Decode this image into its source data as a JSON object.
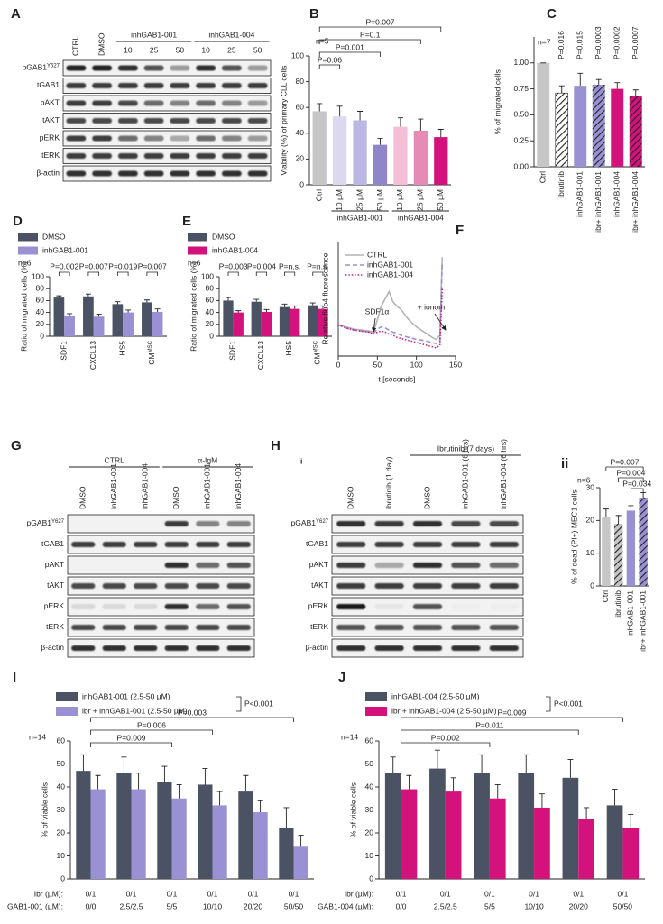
{
  "chart_data": [
    {
      "type": "bar",
      "panel": "B",
      "ylabel": "Viability (%) of primary CLL cells",
      "note": "n=5",
      "categories": [
        "Ctrl",
        "10 µM",
        "25 µM",
        "50 µM",
        "10 µM",
        "25 µM",
        "50 µM"
      ],
      "groups": [
        "inhGAB1-001",
        "inhGAB1-004"
      ],
      "series": [
        {
          "values": [
            57,
            53,
            50,
            31,
            45,
            42,
            37
          ],
          "errors": [
            6,
            8,
            7,
            5,
            7,
            9,
            6
          ],
          "colors": [
            "#c6c6c6",
            "#dcd8ef",
            "#bcb6e2",
            "#8f86c9",
            "#f4bfd6",
            "#e58bb5",
            "#d4127c"
          ]
        }
      ],
      "ylim": [
        0,
        100
      ],
      "yticks": [
        0,
        20,
        40,
        60,
        80,
        100
      ],
      "annotations": [
        "P=0.007",
        "P=0.1",
        "P=0.001",
        "P=0.06"
      ]
    },
    {
      "type": "bar",
      "panel": "C",
      "ylabel": "% of migrated cells",
      "note": "n=7",
      "categories": [
        "Ctrl",
        "ibrutinib",
        "inhGAB1-001",
        "ibr+ inhGAB1-001",
        "inhGAB1-004",
        "ibr+ inhGAB1-004"
      ],
      "series": [
        {
          "values": [
            1.0,
            0.71,
            0.78,
            0.79,
            0.75,
            0.68
          ],
          "errors": [
            0,
            0.07,
            0.12,
            0.05,
            0.06,
            0.06
          ],
          "colors": [
            "#c6c6c6",
            "#ffffff",
            "#9991d3",
            "#9991d3",
            "#d4127c",
            "#d4127c"
          ],
          "hatched": [
            false,
            true,
            false,
            true,
            false,
            true
          ]
        }
      ],
      "ylim": [
        0,
        1.25
      ],
      "yticks": [
        {
          "value": 0,
          "label": "0.00"
        },
        {
          "value": 0.25,
          "label": "0.25"
        },
        {
          "value": 0.5,
          "label": "0.50"
        },
        {
          "value": 0.75,
          "label": "0.75"
        },
        {
          "value": 1,
          "label": "1.00"
        }
      ],
      "annotations": [
        "P=0.016",
        "P=0.015",
        "P=0.0003",
        "P=0.0002",
        "P=0.0007"
      ]
    },
    {
      "type": "bar",
      "panel": "D",
      "ylabel": "Ratio of migrated cells (%)",
      "note": "n=6",
      "categories": [
        {
          "label": "SDF1"
        },
        {
          "label": "CXCL13"
        },
        {
          "label": "HS5"
        },
        {
          "label": "CM",
          "sup": "MSC"
        }
      ],
      "series": [
        {
          "name": "DMSO",
          "color": "#4b5263",
          "values": [
            65,
            67,
            54,
            57
          ],
          "errors": [
            3,
            4,
            4,
            4
          ]
        },
        {
          "name": "inhGAB1-001",
          "color": "#9991d3",
          "values": [
            35,
            33,
            40,
            41
          ],
          "errors": [
            3,
            4,
            4,
            5
          ]
        }
      ],
      "ylim": [
        0,
        100
      ],
      "yticks": [
        0,
        20,
        40,
        60,
        80,
        100
      ],
      "annotations": [
        "P=0.002",
        "P=0.007",
        "P=0.019",
        "P=0.007"
      ]
    },
    {
      "type": "bar",
      "panel": "E",
      "ylabel": "Ratio of migrated cells (%)",
      "note": "n=6",
      "categories": [
        {
          "label": "SDF1"
        },
        {
          "label": "CXCL13"
        },
        {
          "label": "HS5"
        },
        {
          "label": "CM",
          "sup": "MSC"
        }
      ],
      "series": [
        {
          "name": "DMSO",
          "color": "#4b5263",
          "values": [
            60,
            58,
            49,
            52
          ],
          "errors": [
            5,
            4,
            5,
            4
          ]
        },
        {
          "name": "inhGAB1-004",
          "color": "#d4127c",
          "values": [
            40,
            41,
            46,
            46
          ],
          "errors": [
            3,
            4,
            5,
            5
          ]
        }
      ],
      "ylim": [
        0,
        100
      ],
      "yticks": [
        0,
        20,
        40,
        60,
        80,
        100
      ],
      "annotations": [
        "P=0.003",
        "P=0.004",
        "P=n.s.",
        "P=n.s."
      ]
    },
    {
      "type": "line",
      "panel": "F",
      "xlabel": "t [seconds]",
      "ylabel": "Relative fluo4 fluorescence",
      "x": [
        0,
        10,
        20,
        30,
        40,
        45,
        50,
        55,
        60,
        65,
        70,
        75,
        80,
        90,
        100,
        110,
        120,
        125,
        130,
        133
      ],
      "series": [
        {
          "name": "CTRL",
          "color": "#b4b4b4",
          "dash": "solid",
          "values": [
            1.0,
            0.98,
            0.96,
            0.95,
            0.94,
            0.93,
            1.05,
            1.18,
            1.25,
            1.32,
            1.22,
            1.18,
            1.15,
            1.05,
            0.98,
            0.93,
            0.88,
            0.86,
            0.9,
            1.65
          ]
        },
        {
          "name": "inhGAB1-001",
          "color": "#9991d3",
          "dash": "dashed",
          "values": [
            1.0,
            0.97,
            0.95,
            0.94,
            0.93,
            0.92,
            0.96,
            0.98,
            0.97,
            0.95,
            0.93,
            0.92,
            0.9,
            0.88,
            0.86,
            0.85,
            0.83,
            0.82,
            0.85,
            1.6
          ]
        },
        {
          "name": "inhGAB1-004",
          "color": "#d4127c",
          "dash": "dotted",
          "values": [
            1.0,
            0.97,
            0.95,
            0.94,
            0.93,
            0.91,
            0.93,
            0.94,
            0.93,
            0.91,
            0.9,
            0.88,
            0.87,
            0.85,
            0.83,
            0.81,
            0.79,
            0.78,
            0.8,
            1.35
          ]
        }
      ],
      "xlim": [
        0,
        150
      ],
      "xticks": [
        0,
        50,
        100,
        150
      ],
      "ylim": [
        0.7,
        1.8
      ],
      "annotations": [
        "SDF1α",
        "+ ionom"
      ]
    },
    {
      "type": "bar",
      "panel": "ii",
      "ylabel": "% of dead (PI+) MEC1 cells",
      "note": "n=6",
      "categories": [
        "Ctrl",
        "ibrutinib",
        "inhGAB1-001",
        "ibr+ inhGAB1-001"
      ],
      "series": [
        {
          "values": [
            21,
            19,
            23,
            27
          ],
          "errors": [
            2.5,
            2.5,
            1.5,
            1.5
          ],
          "colors": [
            "#c6c6c6",
            "#c6c6c6",
            "#9991d3",
            "#9991d3"
          ],
          "hatched": [
            false,
            true,
            false,
            true
          ]
        }
      ],
      "ylim": [
        0,
        30
      ],
      "yticks": [
        0,
        10,
        20,
        30
      ],
      "annotations": [
        "P=0.007",
        "P=0.004",
        "P=0.034"
      ]
    },
    {
      "type": "bar",
      "panel": "I",
      "ylabel": "% of viable cells",
      "note": "n=14",
      "categories": [
        "0/1",
        "0/1",
        "0/1",
        "0/1",
        "0/1",
        "0/1"
      ],
      "x_rows": [
        {
          "label": "Ibr (µM):",
          "values": [
            "0/1",
            "0/1",
            "0/1",
            "0/1",
            "0/1",
            "0/1"
          ]
        },
        {
          "label": "GAB1-001 (µM):",
          "values": [
            "0/0",
            "2.5/2.5",
            "5/5",
            "10/10",
            "20/20",
            "50/50"
          ]
        }
      ],
      "series": [
        {
          "name": "inhGAB1-001 (2.5-50 µM)",
          "color": "#4b5263",
          "values": [
            47,
            46,
            42,
            41,
            38,
            22
          ],
          "errors": [
            7,
            7,
            7,
            7,
            7,
            9
          ]
        },
        {
          "name": "ibr + inhGAB1-001 (2.5-50 µM)",
          "color": "#9991d3",
          "values": [
            39,
            39,
            35,
            32,
            29,
            14
          ],
          "errors": [
            6,
            7,
            6,
            6,
            5,
            5
          ]
        }
      ],
      "ylim": [
        0,
        60
      ],
      "yticks": [
        0,
        10,
        20,
        30,
        40,
        50,
        60
      ],
      "legend_annotation": "P<0.001",
      "annotations": [
        "P=0.003",
        "P=0.006",
        "P=0.009"
      ]
    },
    {
      "type": "bar",
      "panel": "J",
      "ylabel": "% of viable cells",
      "note": "n=14",
      "categories": [
        "0/1",
        "0/1",
        "0/1",
        "0/1",
        "0/1",
        "0/1"
      ],
      "x_rows": [
        {
          "label": "Ibr (µM):",
          "values": [
            "0/1",
            "0/1",
            "0/1",
            "0/1",
            "0/1",
            "0/1"
          ]
        },
        {
          "label": "GAB1-004 (µM):",
          "values": [
            "0/0",
            "2.5/2.5",
            "5/5",
            "10/10",
            "20/20",
            "50/50"
          ]
        }
      ],
      "series": [
        {
          "name": "inhGAB1-004 (2.5-50 µM)",
          "color": "#4b5263",
          "values": [
            46,
            48,
            46,
            46,
            44,
            32
          ],
          "errors": [
            7,
            8,
            8,
            8,
            8,
            7
          ]
        },
        {
          "name": "ibr + inhGAB1-004 (2.5-50 µM)",
          "color": "#d4127c",
          "values": [
            39,
            38,
            35,
            31,
            26,
            22
          ],
          "errors": [
            6,
            6,
            6,
            6,
            5,
            6
          ]
        }
      ],
      "ylim": [
        0,
        60
      ],
      "yticks": [
        0,
        10,
        20,
        30,
        40,
        50,
        60
      ],
      "legend_annotation": "P<0.001",
      "annotations": [
        "P=0.009",
        "P=0.011",
        "P=0.002"
      ]
    }
  ],
  "blots": [
    {
      "panel": "A",
      "lanes": [
        "CTRL",
        "DMSO",
        "10",
        "25",
        "50",
        "10",
        "25",
        "50"
      ],
      "groups": [
        "inhGAB1-001",
        "inhGAB1-004"
      ],
      "rows": [
        {
          "label": "pGAB1",
          "sup": "Y627"
        },
        {
          "label": "tGAB1"
        },
        {
          "label": "pAKT"
        },
        {
          "label": "tAKT"
        },
        {
          "label": "pERK"
        },
        {
          "label": "tERK"
        },
        {
          "label": "β-actin"
        }
      ],
      "bands": [
        [
          0.9,
          0.9,
          0.85,
          0.7,
          0.4,
          0.85,
          0.7,
          0.4
        ],
        [
          0.8,
          0.8,
          0.8,
          0.8,
          0.8,
          0.8,
          0.8,
          0.8
        ],
        [
          0.8,
          0.8,
          0.75,
          0.6,
          0.5,
          0.6,
          0.5,
          0.4
        ],
        [
          0.75,
          0.75,
          0.75,
          0.75,
          0.75,
          0.75,
          0.75,
          0.75
        ],
        [
          0.8,
          0.8,
          0.6,
          0.5,
          0.3,
          0.6,
          0.5,
          0.4
        ],
        [
          0.8,
          0.8,
          0.8,
          0.8,
          0.8,
          0.8,
          0.8,
          0.8
        ],
        [
          0.85,
          0.85,
          0.85,
          0.85,
          0.85,
          0.85,
          0.85,
          0.85
        ]
      ]
    },
    {
      "panel": "G",
      "lanes": [
        "DMSO",
        "inhGAB1-001",
        "inhGAB1-004",
        "DMSO",
        "inhGAB1-001",
        "inhGAB1-004"
      ],
      "groups": [
        "CTRL",
        "α-IgM"
      ],
      "rows": [
        {
          "label": "pGAB1",
          "sup": "Y627"
        },
        {
          "label": "tGAB1"
        },
        {
          "label": "pAKT"
        },
        {
          "label": "tAKT"
        },
        {
          "label": "pERK"
        },
        {
          "label": "tERK"
        },
        {
          "label": "β-actin"
        }
      ],
      "bands": [
        [
          0,
          0,
          0,
          0.8,
          0.5,
          0.5
        ],
        [
          0.8,
          0.8,
          0.8,
          0.8,
          0.8,
          0.8
        ],
        [
          0,
          0,
          0,
          0.85,
          0.6,
          0.7
        ],
        [
          0.75,
          0.75,
          0.75,
          0.75,
          0.75,
          0.75
        ],
        [
          0.1,
          0.1,
          0.1,
          0.85,
          0.6,
          0.7
        ],
        [
          0.75,
          0.75,
          0.75,
          0.75,
          0.75,
          0.75
        ],
        [
          0.85,
          0.85,
          0.85,
          0.85,
          0.85,
          0.85
        ]
      ]
    },
    {
      "panel": "H",
      "subpanel": "i",
      "lanes": [
        "DMSO",
        "ibrutinib (1 day)",
        "DMSO",
        "inhGAB1-001 (6 hrs)",
        "inhGAB1-004 (6 hrs)"
      ],
      "groups": [
        "Ibrutinib (7 days)"
      ],
      "rows": [
        {
          "label": "pGAB1",
          "sup": "Y627"
        },
        {
          "label": "tGAB1"
        },
        {
          "label": "pAKT"
        },
        {
          "label": "tAKT"
        },
        {
          "label": "pERK"
        },
        {
          "label": "tERK"
        },
        {
          "label": "β-actin"
        }
      ],
      "bands": [
        [
          0.85,
          0.8,
          0.85,
          0.75,
          0.75
        ],
        [
          0.8,
          0.8,
          0.8,
          0.8,
          0.8
        ],
        [
          0.8,
          0.3,
          0.85,
          0.7,
          0.6
        ],
        [
          0.8,
          0.8,
          0.8,
          0.8,
          0.8
        ],
        [
          0.95,
          0.05,
          0.7,
          0.02,
          0.02
        ],
        [
          0.7,
          0.7,
          0.7,
          0.7,
          0.7
        ],
        [
          0.85,
          0.85,
          0.85,
          0.85,
          0.85
        ]
      ]
    }
  ]
}
